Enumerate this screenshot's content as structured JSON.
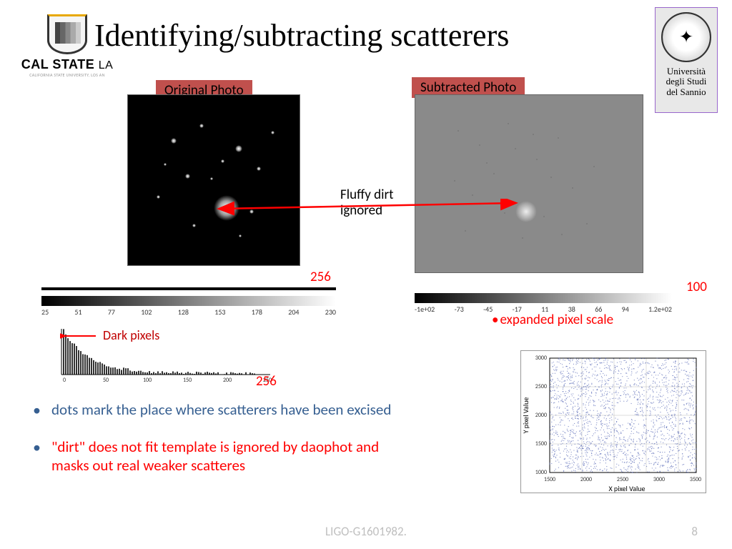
{
  "title": "Identifying/subtracting scatterers",
  "logo_left": {
    "main": "CAL STATE",
    "suffix": "LA",
    "sub": "CALIFORNIA STATE UNIVERSITY, LOS AN"
  },
  "logo_right": {
    "line1": "Università",
    "line2": "degli Studi",
    "line3": "del Sannio"
  },
  "labels": {
    "original": "Original Photo",
    "subtracted": "Subtracted Photo",
    "fluffy1": "Fluffy dirt",
    "fluffy2": "ignored",
    "dark_pixels": "Dark pixels",
    "expanded_scale": "expanded pixel scale",
    "n256": "256",
    "n100": "100"
  },
  "grayscale_left": {
    "ticks": [
      "25",
      "51",
      "77",
      "102",
      "128",
      "153",
      "178",
      "204",
      "230"
    ]
  },
  "grayscale_right": {
    "ticks": [
      "-1e+02",
      "-73",
      "-45",
      "-17",
      "11",
      "38",
      "66",
      "94",
      "1.2e+02"
    ]
  },
  "histogram": {
    "x_max": 256,
    "x_ticks": [
      "0",
      "50",
      "100",
      "150",
      "200",
      "250"
    ]
  },
  "scatter": {
    "xlabel": "X pixel Value",
    "ylabel": "Y pixel Value",
    "x_ticks": [
      "1500",
      "2000",
      "2500",
      "3000",
      "3500"
    ],
    "y_ticks": [
      "1000",
      "1500",
      "2000",
      "2500",
      "3000"
    ],
    "point_color": "#4a5db0"
  },
  "bullets": {
    "b1": "dots mark the place where scatterers have been excised",
    "b2a": "\"dirt\" does not fit template is ignored by daophot  and",
    "b2b": "masks out real weaker scatteres"
  },
  "footer": "LIGO-G1601982.",
  "page": "8",
  "colors": {
    "red": "#f00",
    "blue": "#365f91",
    "label_bg": "#c0504d"
  }
}
